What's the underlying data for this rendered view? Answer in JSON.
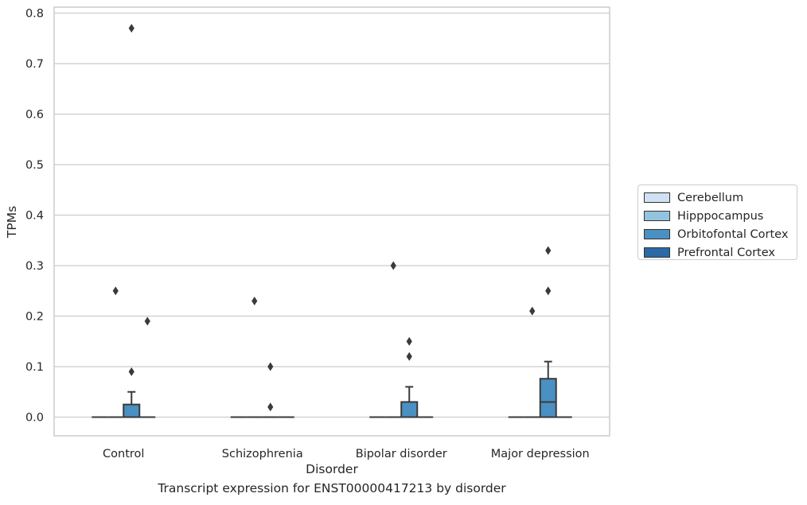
{
  "caption": "Transcript expression for ENST00000417213 by disorder",
  "chart_data": {
    "type": "box",
    "xlabel": "Disorder",
    "ylabel": "TPMs",
    "ylim": [
      -0.04,
      0.815
    ],
    "yticks": [
      0.0,
      0.1,
      0.2,
      0.3,
      0.4,
      0.5,
      0.6,
      0.7,
      0.8
    ],
    "ytick_labels": [
      "0.0",
      "0.1",
      "0.2",
      "0.3",
      "0.4",
      "0.5",
      "0.6",
      "0.7",
      "0.8"
    ],
    "grid": "horizontal",
    "legend_position": "right",
    "categories": [
      "Control",
      "Schizophrenia",
      "Bipolar disorder",
      "Major depression"
    ],
    "series": [
      {
        "name": "Cerebellum",
        "color": "#cfe1f2",
        "boxes": [
          {
            "q1": 0,
            "median": 0,
            "q3": 0,
            "whisker_low": 0,
            "whisker_high": 0,
            "outliers": []
          },
          {
            "q1": 0,
            "median": 0,
            "q3": 0,
            "whisker_low": 0,
            "whisker_high": 0,
            "outliers": []
          },
          {
            "q1": 0,
            "median": 0,
            "q3": 0,
            "whisker_low": 0,
            "whisker_high": 0,
            "outliers": []
          },
          {
            "q1": 0,
            "median": 0,
            "q3": 0,
            "whisker_low": 0,
            "whisker_high": 0,
            "outliers": []
          }
        ]
      },
      {
        "name": "Hipppocampus",
        "color": "#93c4de",
        "boxes": [
          {
            "q1": 0,
            "median": 0,
            "q3": 0,
            "whisker_low": 0,
            "whisker_high": 0,
            "outliers": [
              0.25
            ]
          },
          {
            "q1": 0,
            "median": 0,
            "q3": 0,
            "whisker_low": 0,
            "whisker_high": 0,
            "outliers": [
              0.23
            ]
          },
          {
            "q1": 0,
            "median": 0,
            "q3": 0,
            "whisker_low": 0,
            "whisker_high": 0,
            "outliers": [
              0.3
            ]
          },
          {
            "q1": 0,
            "median": 0,
            "q3": 0,
            "whisker_low": 0,
            "whisker_high": 0,
            "outliers": [
              0.21
            ]
          }
        ]
      },
      {
        "name": "Orbitofontal Cortex",
        "color": "#4a90c2",
        "boxes": [
          {
            "q1": 0,
            "median": 0,
            "q3": 0.025,
            "whisker_low": 0,
            "whisker_high": 0.05,
            "outliers": [
              0.09,
              0.77
            ]
          },
          {
            "q1": 0,
            "median": 0,
            "q3": 0,
            "whisker_low": 0,
            "whisker_high": 0,
            "outliers": [
              0.1,
              0.02
            ]
          },
          {
            "q1": 0,
            "median": 0,
            "q3": 0.03,
            "whisker_low": 0,
            "whisker_high": 0.06,
            "outliers": [
              0.12,
              0.15
            ]
          },
          {
            "q1": 0,
            "median": 0.03,
            "q3": 0.076,
            "whisker_low": 0,
            "whisker_high": 0.11,
            "outliers": [
              0.25,
              0.33
            ]
          }
        ]
      },
      {
        "name": "Prefrontal Cortex",
        "color": "#2b6aa6",
        "boxes": [
          {
            "q1": 0,
            "median": 0,
            "q3": 0,
            "whisker_low": 0,
            "whisker_high": 0,
            "outliers": [
              0.19
            ]
          },
          {
            "q1": 0,
            "median": 0,
            "q3": 0,
            "whisker_low": 0,
            "whisker_high": 0,
            "outliers": []
          },
          {
            "q1": 0,
            "median": 0,
            "q3": 0,
            "whisker_low": 0,
            "whisker_high": 0,
            "outliers": []
          },
          {
            "q1": 0,
            "median": 0,
            "q3": 0,
            "whisker_low": 0,
            "whisker_high": 0,
            "outliers": []
          }
        ]
      }
    ]
  }
}
